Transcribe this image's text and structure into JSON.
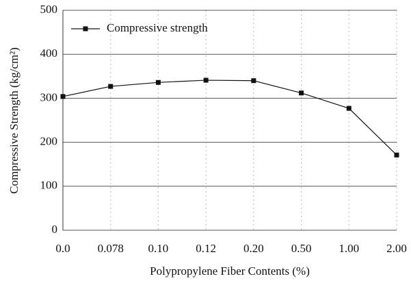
{
  "chart_data": {
    "type": "line",
    "x_label": "Polypropylene Fiber Contents (%)",
    "y_label": "Compressive Strength (kg/cm²)",
    "categories": [
      "0.0",
      "0.078",
      "0.10",
      "0.12",
      "0.20",
      "0.50",
      "1.00",
      "2.00"
    ],
    "series": [
      {
        "name": "Compressive strength",
        "color": "#111111",
        "values": [
          304,
          327,
          336,
          341,
          340,
          312,
          277,
          171
        ]
      }
    ],
    "ylim": [
      0,
      500
    ],
    "yticks": [
      0,
      100,
      200,
      300,
      400,
      500
    ],
    "grid": true,
    "legend": "upper left"
  }
}
